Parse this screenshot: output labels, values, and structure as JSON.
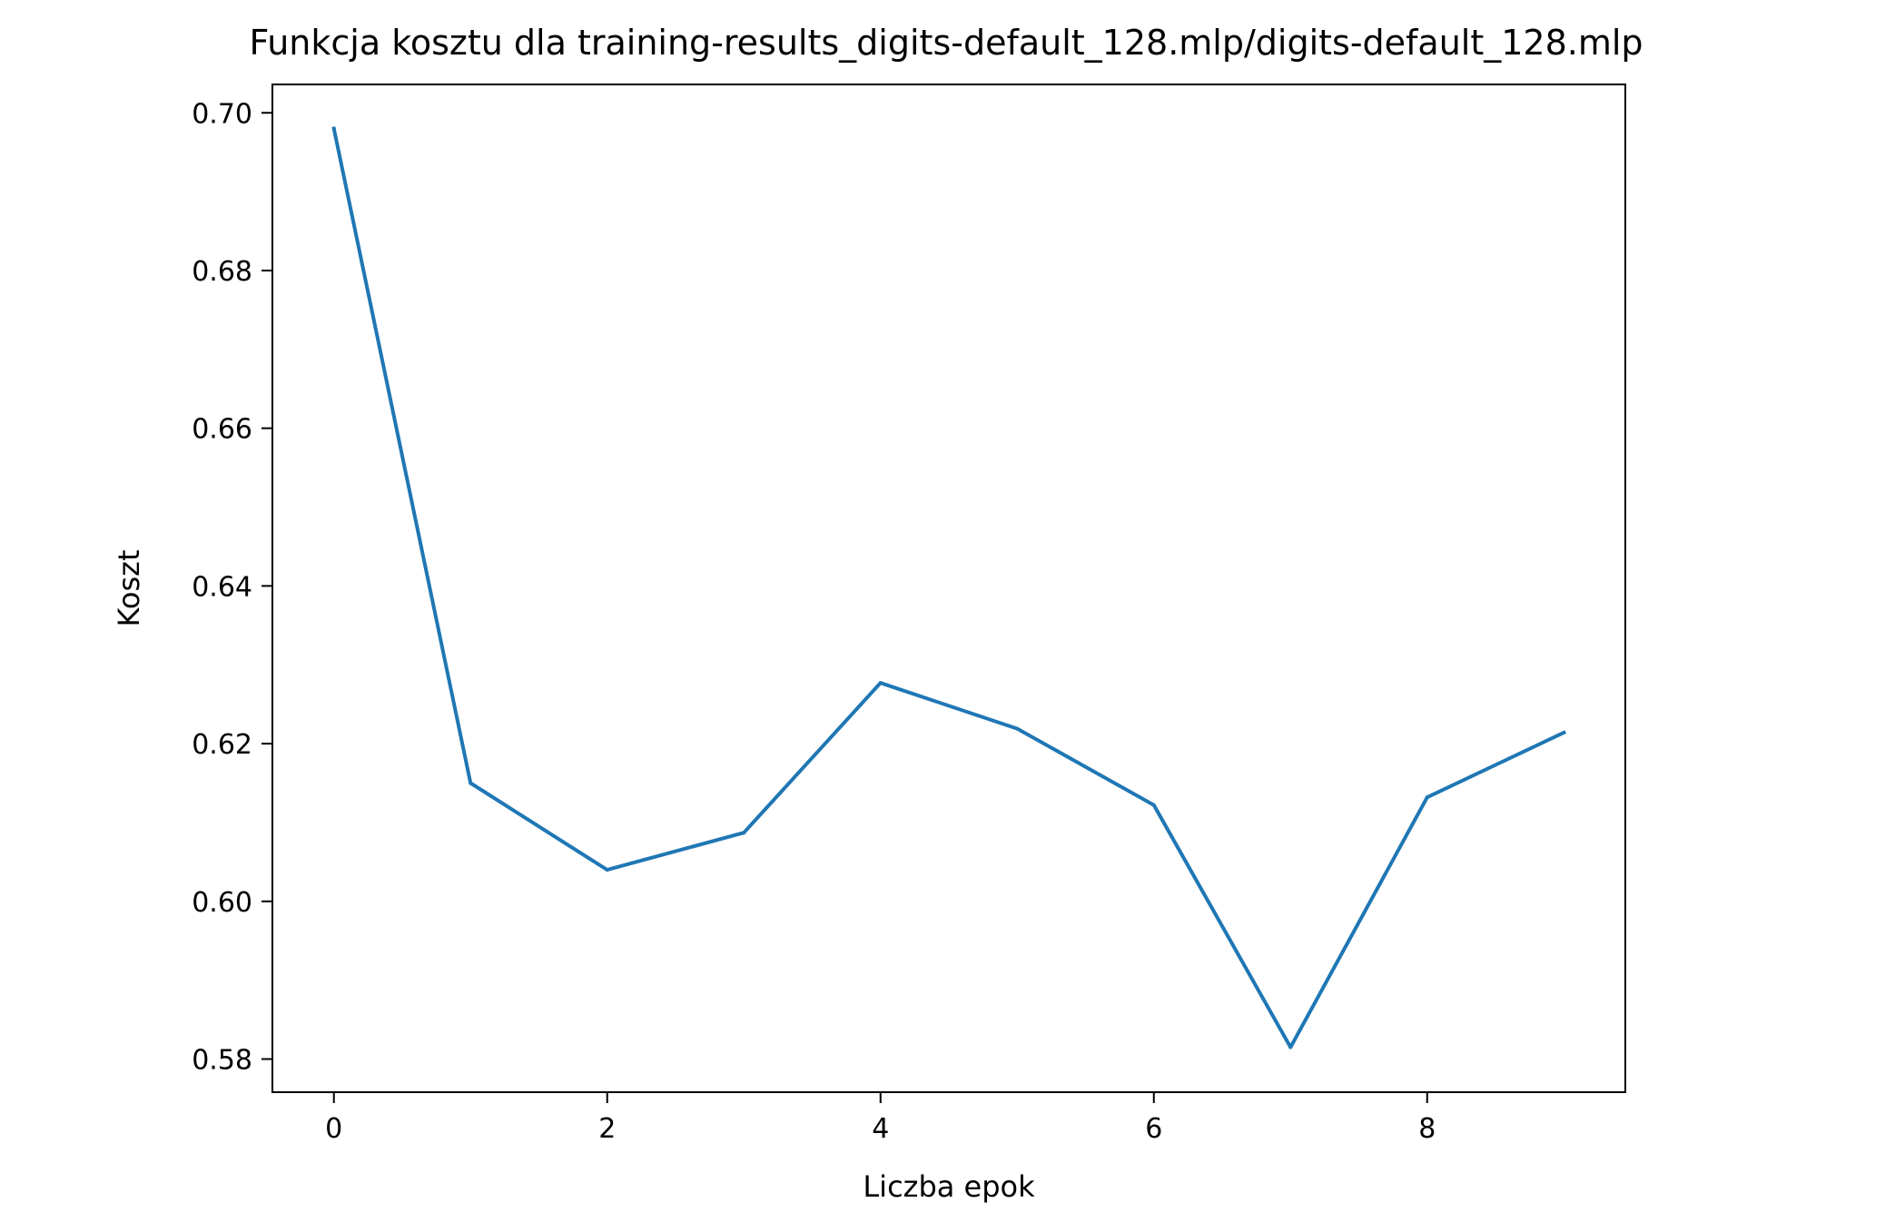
{
  "chart_data": {
    "type": "line",
    "title": "Funkcja kosztu dla training-results_digits-default_128.mlp/digits-default_128.mlp",
    "xlabel": "Liczba epok",
    "ylabel": "Koszt",
    "xlim": [
      -0.45,
      9.45
    ],
    "ylim": [
      0.5758,
      0.7036
    ],
    "xticks": [
      0,
      2,
      4,
      6,
      8
    ],
    "xtick_labels": [
      "0",
      "2",
      "4",
      "6",
      "8"
    ],
    "yticks": [
      0.58,
      0.6,
      0.62,
      0.64,
      0.66,
      0.68,
      0.7
    ],
    "ytick_labels": [
      "0.58",
      "0.60",
      "0.62",
      "0.64",
      "0.66",
      "0.68",
      "0.70"
    ],
    "grid": false,
    "line_color": "#1f77b4",
    "series": [
      {
        "x": [
          0,
          1,
          2,
          3,
          4,
          5,
          6,
          7,
          8,
          9
        ],
        "values": [
          0.698,
          0.615,
          0.604,
          0.6087,
          0.6277,
          0.6219,
          0.6122,
          0.5815,
          0.6132,
          0.6214
        ]
      }
    ]
  }
}
